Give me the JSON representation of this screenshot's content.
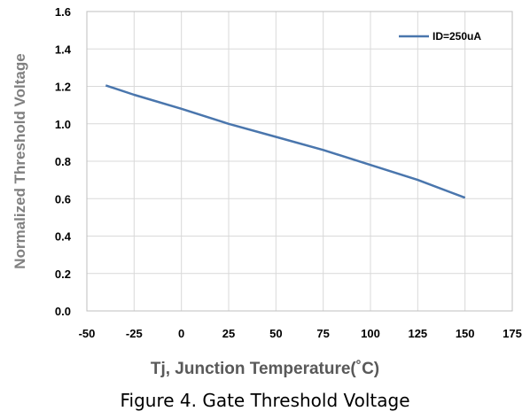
{
  "chart_data": {
    "type": "line",
    "title": "",
    "xlabel": "Tj, Junction Temperature(˚C)",
    "ylabel": "Normalized Threshold Voltage",
    "xlim": [
      -50,
      175
    ],
    "ylim": [
      0,
      1.6
    ],
    "x_ticks": [
      "-50",
      "-25",
      "0",
      "25",
      "50",
      "75",
      "100",
      "125",
      "150",
      "175"
    ],
    "y_ticks": [
      "0.0",
      "0.2",
      "0.4",
      "0.6",
      "0.8",
      "1.0",
      "1.2",
      "1.4",
      "1.6"
    ],
    "grid": true,
    "legend_position": "top-right",
    "series": [
      {
        "name": "ID=250uA",
        "color": "#4a76ad",
        "x": [
          -40,
          -25,
          0,
          25,
          50,
          75,
          100,
          125,
          150
        ],
        "y": [
          1.205,
          1.155,
          1.08,
          1.0,
          0.93,
          0.86,
          0.78,
          0.7,
          0.605
        ]
      }
    ]
  },
  "caption": "Figure 4. Gate Threshold Voltage"
}
